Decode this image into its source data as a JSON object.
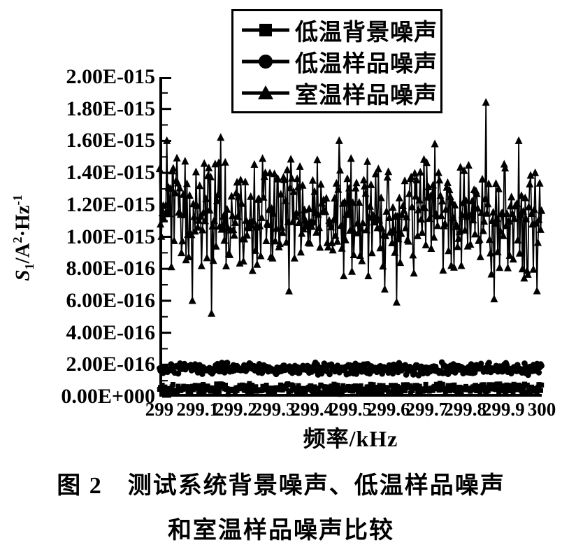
{
  "chart_data": {
    "type": "scatter",
    "title": "",
    "xlabel": "频率/kHz",
    "ylabel": "S1/A2·Hz-1",
    "ylabel_parts": {
      "s": "S",
      "s_sub": "1",
      "per_a": "/A",
      "a_sup": "2",
      "dot": "·",
      "hz": "Hz",
      "hz_sup": "-1"
    },
    "xlim": [
      299,
      300
    ],
    "ylim": [
      0,
      2e-15
    ],
    "grid": false,
    "x_ticks": [
      "299",
      "299.1",
      "299.2",
      "299.3",
      "299.4",
      "299.5",
      "299.6",
      "299.7",
      "299.8",
      "299.9",
      "300"
    ],
    "y_ticks": [
      "2.00E-015",
      "1.80E-015",
      "1.60E-015",
      "1.40E-015",
      "1.20E-015",
      "1.00E-015",
      "8.00E-016",
      "6.00E-016",
      "4.00E-016",
      "2.00E-016",
      "0.00E+000"
    ],
    "legend": {
      "position": "top-center",
      "entries": [
        {
          "label": "低温背景噪声",
          "marker": "square"
        },
        {
          "label": "低温样品噪声",
          "marker": "circle"
        },
        {
          "label": "室温样品噪声",
          "marker": "triangle"
        }
      ]
    },
    "series": [
      {
        "name": "低温背景噪声",
        "marker": "square",
        "n_points": 430,
        "y_center": 5e-17,
        "y_spread": 4e-17,
        "seed": 101
      },
      {
        "name": "低温样品噪声",
        "marker": "circle",
        "n_points": 430,
        "y_center": 1.74e-16,
        "y_spread": 4.2e-17,
        "seed": 202
      },
      {
        "name": "室温样品噪声",
        "marker": "triangle",
        "n_points": 420,
        "y_center": 1.13e-15,
        "y_spread": 4e-16,
        "seed": 303,
        "outliers_low": [
          [
            299.086,
            6e-16
          ],
          [
            299.135,
            5.2e-16
          ],
          [
            299.34,
            6.6e-16
          ],
          [
            299.62,
            5.9e-16
          ],
          [
            299.875,
            6.1e-16
          ],
          [
            299.955,
            7.4e-16
          ]
        ],
        "outliers_high": [
          [
            299.855,
            1.84e-15
          ],
          [
            299.02,
            1.6e-15
          ],
          [
            299.16,
            1.62e-15
          ],
          [
            299.47,
            1.6e-15
          ],
          [
            299.72,
            1.58e-15
          ],
          [
            299.94,
            1.6e-15
          ]
        ]
      }
    ],
    "colors": {
      "series": "#000000",
      "axis": "#000000",
      "background": "#ffffff"
    }
  },
  "caption": {
    "line1": "图 2　测试系统背景噪声、低温样品噪声",
    "line2": "和室温样品噪声比较"
  }
}
